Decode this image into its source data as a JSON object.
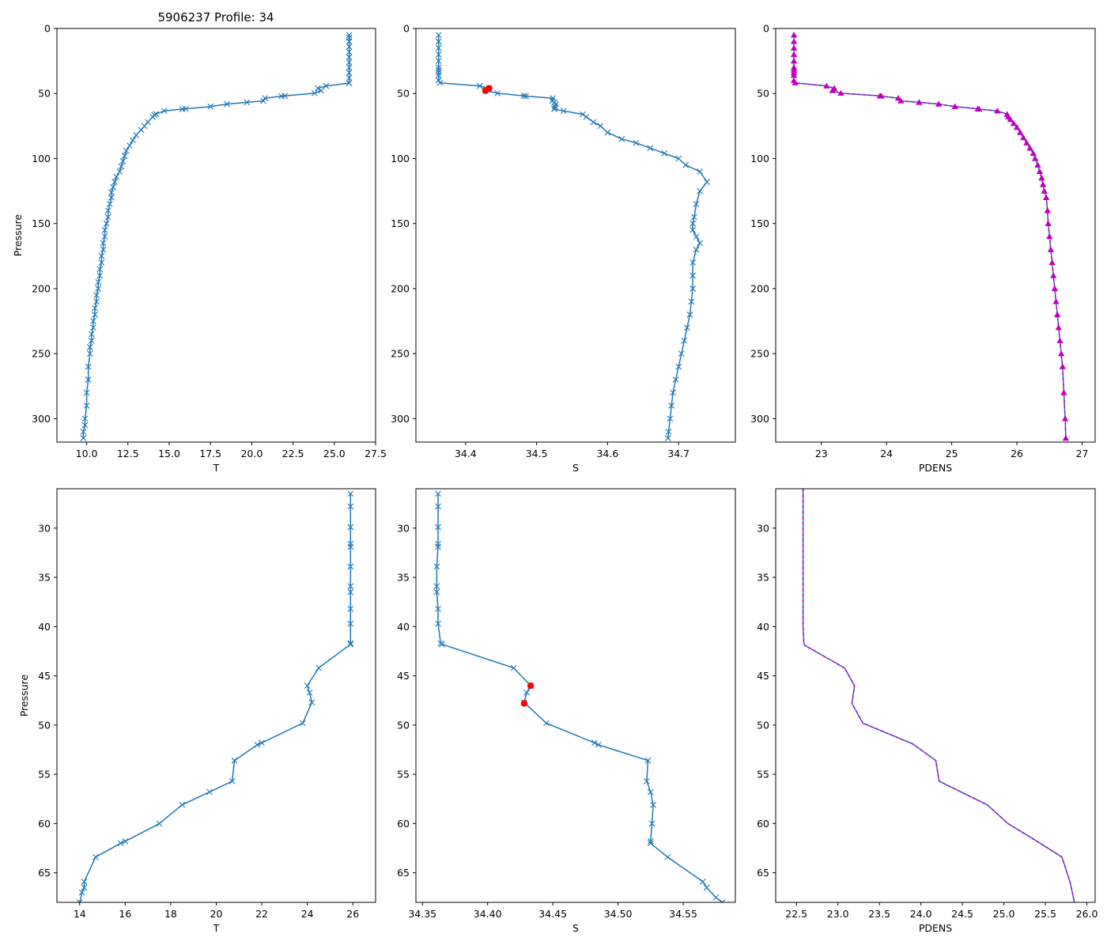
{
  "figure_title": "5906237 Profile: 34",
  "chart_data": [
    {
      "type": "line",
      "panel": "top-left",
      "xlabel": "T",
      "ylabel": "Pressure",
      "xlim": [
        8.2,
        27.5
      ],
      "ylim": [
        318,
        0
      ],
      "xticks": [
        10.0,
        12.5,
        15.0,
        17.5,
        20.0,
        22.5,
        25.0,
        27.5
      ],
      "xtick_labels": [
        "10.0",
        "12.5",
        "15.0",
        "17.5",
        "20.0",
        "22.5",
        "25.0",
        "27.5"
      ],
      "yticks": [
        0,
        50,
        100,
        150,
        200,
        250,
        300
      ],
      "ytick_labels": [
        "0",
        "50",
        "100",
        "150",
        "200",
        "250",
        "300"
      ],
      "series": [
        {
          "name": "T",
          "color": "#1f77b4",
          "marker": "x",
          "x": [
            25.9,
            25.9,
            25.9,
            25.9,
            25.9,
            25.9,
            25.9,
            25.9,
            25.9,
            25.9,
            25.9,
            24.5,
            24.0,
            24.2,
            23.8,
            22.0,
            21.8,
            20.8,
            20.7,
            19.7,
            18.5,
            17.5,
            16.0,
            15.8,
            14.7,
            14.2,
            14.1,
            14.0,
            13.7,
            13.5,
            13.3,
            13.0,
            12.8,
            12.6,
            12.4,
            12.3,
            12.2,
            12.1,
            12.0,
            11.8,
            11.7,
            11.6,
            11.5,
            11.5,
            11.4,
            11.3,
            11.3,
            11.2,
            11.1,
            11.1,
            11.0,
            11.0,
            10.9,
            10.9,
            10.8,
            10.8,
            10.7,
            10.7,
            10.6,
            10.6,
            10.5,
            10.5,
            10.4,
            10.4,
            10.3,
            10.3,
            10.2,
            10.2,
            10.1,
            10.1,
            10.0,
            10.0,
            9.9,
            9.9,
            9.8,
            9.8
          ],
          "y": [
            5,
            7,
            10,
            14,
            18,
            22,
            26,
            30,
            34,
            38,
            42,
            44.2,
            46,
            47.8,
            49.8,
            51.8,
            52,
            53.6,
            55.7,
            56.8,
            58.1,
            60,
            61.8,
            62,
            63.4,
            65.8,
            66.5,
            68,
            72,
            75,
            78,
            82,
            86,
            90,
            94,
            98,
            102,
            106,
            110,
            114,
            118,
            122,
            126,
            130,
            135,
            140,
            145,
            150,
            155,
            160,
            165,
            170,
            175,
            180,
            185,
            190,
            195,
            200,
            205,
            210,
            215,
            220,
            225,
            230,
            235,
            240,
            245,
            250,
            260,
            270,
            280,
            290,
            300,
            305,
            310,
            315
          ]
        }
      ]
    },
    {
      "type": "line",
      "panel": "top-middle",
      "xlabel": "S",
      "ylabel": "",
      "xlim": [
        34.33,
        34.78
      ],
      "ylim": [
        318,
        0
      ],
      "xticks": [
        34.4,
        34.5,
        34.6,
        34.7
      ],
      "xtick_labels": [
        "34.4",
        "34.5",
        "34.6",
        "34.7"
      ],
      "yticks": [
        0,
        50,
        100,
        150,
        200,
        250,
        300
      ],
      "ytick_labels": [
        "0",
        "50",
        "100",
        "150",
        "200",
        "250",
        "300"
      ],
      "series": [
        {
          "name": "S",
          "color": "#1f77b4",
          "marker": "x",
          "x": [
            34.362,
            34.362,
            34.362,
            34.362,
            34.362,
            34.362,
            34.362,
            34.362,
            34.362,
            34.362,
            34.364,
            34.42,
            34.433,
            34.43,
            34.428,
            34.445,
            34.482,
            34.485,
            34.523,
            34.522,
            34.525,
            34.527,
            34.526,
            34.525,
            34.525,
            34.538,
            34.565,
            34.57,
            34.58,
            34.59,
            34.6,
            34.62,
            34.64,
            34.66,
            34.68,
            34.7,
            34.71,
            34.73,
            34.74,
            34.73,
            34.725,
            34.722,
            34.72,
            34.72,
            34.725,
            34.73,
            34.725,
            34.72,
            34.72,
            34.72,
            34.718,
            34.716,
            34.712,
            34.708,
            34.704,
            34.7,
            34.696,
            34.692,
            34.69,
            34.688,
            34.686,
            34.685
          ],
          "y": [
            5,
            10,
            15,
            20,
            25,
            30,
            32,
            34,
            36,
            40,
            41.8,
            44.2,
            46,
            46.8,
            47.8,
            49.8,
            51.8,
            52,
            53.6,
            55.7,
            56.8,
            58.1,
            60,
            61.8,
            62,
            63.4,
            66,
            68,
            72,
            75,
            80,
            85,
            88,
            92,
            96,
            100,
            105,
            110,
            118,
            125,
            135,
            145,
            150,
            155,
            160,
            165,
            170,
            180,
            190,
            200,
            210,
            220,
            230,
            240,
            250,
            260,
            270,
            280,
            290,
            300,
            310,
            315
          ]
        },
        {
          "name": "flagged",
          "color": "#ff0000",
          "marker": "o",
          "x": [
            34.433,
            34.428
          ],
          "y": [
            46,
            47.8
          ]
        }
      ]
    },
    {
      "type": "line",
      "panel": "top-right",
      "xlabel": "PDENS",
      "ylabel": "",
      "xlim": [
        22.3,
        27.2
      ],
      "ylim": [
        318,
        0
      ],
      "xticks": [
        23,
        24,
        25,
        26,
        27
      ],
      "xtick_labels": [
        "23",
        "24",
        "25",
        "26",
        "27"
      ],
      "yticks": [
        0,
        50,
        100,
        150,
        200,
        250,
        300
      ],
      "ytick_labels": [
        "0",
        "50",
        "100",
        "150",
        "200",
        "250",
        "300"
      ],
      "series": [
        {
          "name": "PDENS",
          "color": "#1f77b4",
          "marker": "none",
          "x": [
            22.58,
            22.58,
            22.58,
            22.58,
            22.58,
            22.58,
            22.58,
            22.58,
            22.58,
            22.58,
            22.6,
            23.08,
            23.2,
            23.17,
            23.3,
            23.9,
            23.92,
            24.18,
            24.22,
            24.5,
            24.8,
            25.05,
            25.4,
            25.42,
            25.7,
            25.85,
            25.87,
            25.9,
            25.95,
            26.0,
            26.05,
            26.1,
            26.15,
            26.2,
            26.25,
            26.28,
            26.32,
            26.35,
            26.38,
            26.4,
            26.42,
            26.45,
            26.47,
            26.48,
            26.5,
            26.52,
            26.54,
            26.56,
            26.58,
            26.6,
            26.62,
            26.64,
            26.66,
            26.68,
            26.7,
            26.72,
            26.74,
            26.75
          ],
          "y": [
            5,
            10,
            15,
            20,
            25,
            30,
            32,
            34,
            36,
            40,
            41.8,
            44.2,
            46,
            47.8,
            49.8,
            51.8,
            52,
            53.6,
            55.7,
            56.8,
            58.1,
            60,
            61.8,
            62,
            63.4,
            66,
            68,
            70,
            73,
            76,
            80,
            84,
            88,
            92,
            96,
            100,
            105,
            110,
            115,
            120,
            125,
            130,
            140,
            150,
            160,
            170,
            180,
            190,
            200,
            210,
            220,
            230,
            240,
            250,
            260,
            280,
            300,
            315
          ]
        },
        {
          "name": "PDENS computed",
          "color": "#bf00bf",
          "marker": "^",
          "linestyle": "dashed",
          "x": [
            22.58,
            22.58,
            22.58,
            22.58,
            22.58,
            22.58,
            22.58,
            22.58,
            22.58,
            22.58,
            22.6,
            23.08,
            23.2,
            23.17,
            23.3,
            23.9,
            23.92,
            24.18,
            24.22,
            24.5,
            24.8,
            25.05,
            25.4,
            25.42,
            25.7,
            25.85,
            25.87,
            25.9,
            25.95,
            26.0,
            26.05,
            26.1,
            26.15,
            26.2,
            26.25,
            26.28,
            26.32,
            26.35,
            26.38,
            26.4,
            26.42,
            26.45,
            26.47,
            26.48,
            26.5,
            26.52,
            26.54,
            26.56,
            26.58,
            26.6,
            26.62,
            26.64,
            26.66,
            26.68,
            26.7,
            26.72,
            26.74,
            26.75
          ],
          "y": [
            5,
            10,
            15,
            20,
            25,
            30,
            32,
            34,
            36,
            40,
            41.8,
            44.2,
            46,
            47.8,
            49.8,
            51.8,
            52,
            53.6,
            55.7,
            56.8,
            58.1,
            60,
            61.8,
            62,
            63.4,
            66,
            68,
            70,
            73,
            76,
            80,
            84,
            88,
            92,
            96,
            100,
            105,
            110,
            115,
            120,
            125,
            130,
            140,
            150,
            160,
            170,
            180,
            190,
            200,
            210,
            220,
            230,
            240,
            250,
            260,
            280,
            300,
            315
          ]
        }
      ]
    },
    {
      "type": "line",
      "panel": "bottom-left",
      "xlabel": "T",
      "ylabel": "Pressure",
      "xlim": [
        13.0,
        27.0
      ],
      "ylim": [
        68,
        26
      ],
      "xticks": [
        14,
        16,
        18,
        20,
        22,
        24,
        26
      ],
      "xtick_labels": [
        "14",
        "16",
        "18",
        "20",
        "22",
        "24",
        "26"
      ],
      "yticks": [
        30,
        35,
        40,
        45,
        50,
        55,
        60,
        65
      ],
      "ytick_labels": [
        "30",
        "35",
        "40",
        "45",
        "50",
        "55",
        "60",
        "65"
      ],
      "series": [
        {
          "name": "T",
          "color": "#1f77b4",
          "marker": "x",
          "x": [
            25.9,
            25.9,
            25.9,
            25.9,
            25.9,
            25.9,
            25.9,
            25.9,
            25.9,
            25.9,
            25.9,
            25.9,
            24.5,
            24.0,
            24.1,
            24.2,
            23.8,
            22.0,
            21.8,
            20.8,
            20.7,
            19.7,
            18.5,
            17.5,
            16.0,
            15.8,
            14.7,
            14.2,
            14.2,
            14.1,
            14.0
          ],
          "y": [
            26.5,
            27.8,
            29.9,
            31.6,
            31.9,
            33.9,
            35.9,
            36.5,
            38.2,
            39.7,
            41.7,
            41.8,
            44.2,
            46.0,
            46.7,
            47.7,
            49.8,
            51.8,
            52.0,
            53.6,
            55.7,
            56.8,
            58.1,
            60.0,
            61.8,
            62.0,
            63.4,
            65.9,
            66.5,
            67.0,
            68.0
          ]
        }
      ]
    },
    {
      "type": "line",
      "panel": "bottom-middle",
      "xlabel": "S",
      "ylabel": "",
      "xlim": [
        34.345,
        34.59
      ],
      "ylim": [
        68,
        26
      ],
      "xticks": [
        34.35,
        34.4,
        34.45,
        34.5,
        34.55
      ],
      "xtick_labels": [
        "34.35",
        "34.40",
        "34.45",
        "34.50",
        "34.55"
      ],
      "yticks": [
        30,
        35,
        40,
        45,
        50,
        55,
        60,
        65
      ],
      "ytick_labels": [
        "30",
        "35",
        "40",
        "45",
        "50",
        "55",
        "60",
        "65"
      ],
      "series": [
        {
          "name": "S",
          "color": "#1f77b4",
          "marker": "x",
          "x": [
            34.362,
            34.362,
            34.362,
            34.362,
            34.362,
            34.361,
            34.361,
            34.361,
            34.362,
            34.362,
            34.364,
            34.365,
            34.42,
            34.433,
            34.43,
            34.428,
            34.445,
            34.482,
            34.485,
            34.523,
            34.522,
            34.525,
            34.527,
            34.526,
            34.525,
            34.525,
            34.538,
            34.565,
            34.568,
            34.575,
            34.58
          ],
          "y": [
            26.5,
            27.8,
            29.9,
            31.6,
            31.9,
            33.9,
            35.9,
            36.5,
            38.2,
            39.7,
            41.7,
            41.8,
            44.2,
            46.0,
            46.7,
            47.7,
            49.8,
            51.8,
            52.0,
            53.6,
            55.7,
            56.8,
            58.1,
            60.0,
            61.8,
            62.0,
            63.4,
            65.9,
            66.5,
            67.5,
            68.0
          ]
        },
        {
          "name": "flagged",
          "color": "#ff0000",
          "marker": "o",
          "x": [
            34.433,
            34.428
          ],
          "y": [
            46.0,
            47.8
          ]
        }
      ]
    },
    {
      "type": "line",
      "panel": "bottom-right",
      "xlabel": "PDENS",
      "ylabel": "",
      "xlim": [
        22.25,
        26.1
      ],
      "ylim": [
        68,
        26
      ],
      "xticks": [
        22.5,
        23.0,
        23.5,
        24.0,
        24.5,
        25.0,
        25.5,
        26.0
      ],
      "xtick_labels": [
        "22.5",
        "23.0",
        "23.5",
        "24.0",
        "24.5",
        "25.0",
        "25.5",
        "26.0"
      ],
      "yticks": [
        30,
        35,
        40,
        45,
        50,
        55,
        60,
        65
      ],
      "ytick_labels": [
        "30",
        "35",
        "40",
        "45",
        "50",
        "55",
        "60",
        "65"
      ],
      "series": [
        {
          "name": "PDENS",
          "color": "#1f77b4",
          "marker": "none",
          "x": [
            22.58,
            22.58,
            22.58,
            22.58,
            22.59,
            22.6,
            23.08,
            23.2,
            23.17,
            23.3,
            23.9,
            24.18,
            24.22,
            24.8,
            25.05,
            25.4,
            25.7,
            25.8,
            25.85
          ],
          "y": [
            26.0,
            30.0,
            35.0,
            40.0,
            41.7,
            41.9,
            44.2,
            46.0,
            47.8,
            49.8,
            51.9,
            53.6,
            55.7,
            58.1,
            60.0,
            61.8,
            63.4,
            66.0,
            68.0
          ]
        },
        {
          "name": "PDENS computed",
          "color": "#bf00bf",
          "marker": "none",
          "linestyle": "dashed",
          "x": [
            22.58,
            22.58,
            22.58,
            22.58,
            22.59,
            22.6,
            23.08,
            23.2,
            23.17,
            23.3,
            23.9,
            24.18,
            24.22,
            24.8,
            25.05,
            25.4,
            25.7,
            25.8,
            25.85
          ],
          "y": [
            26.0,
            30.0,
            35.0,
            40.0,
            41.7,
            41.9,
            44.2,
            46.0,
            47.8,
            49.8,
            51.9,
            53.6,
            55.7,
            58.1,
            60.0,
            61.8,
            63.4,
            66.0,
            68.0
          ]
        }
      ]
    }
  ]
}
